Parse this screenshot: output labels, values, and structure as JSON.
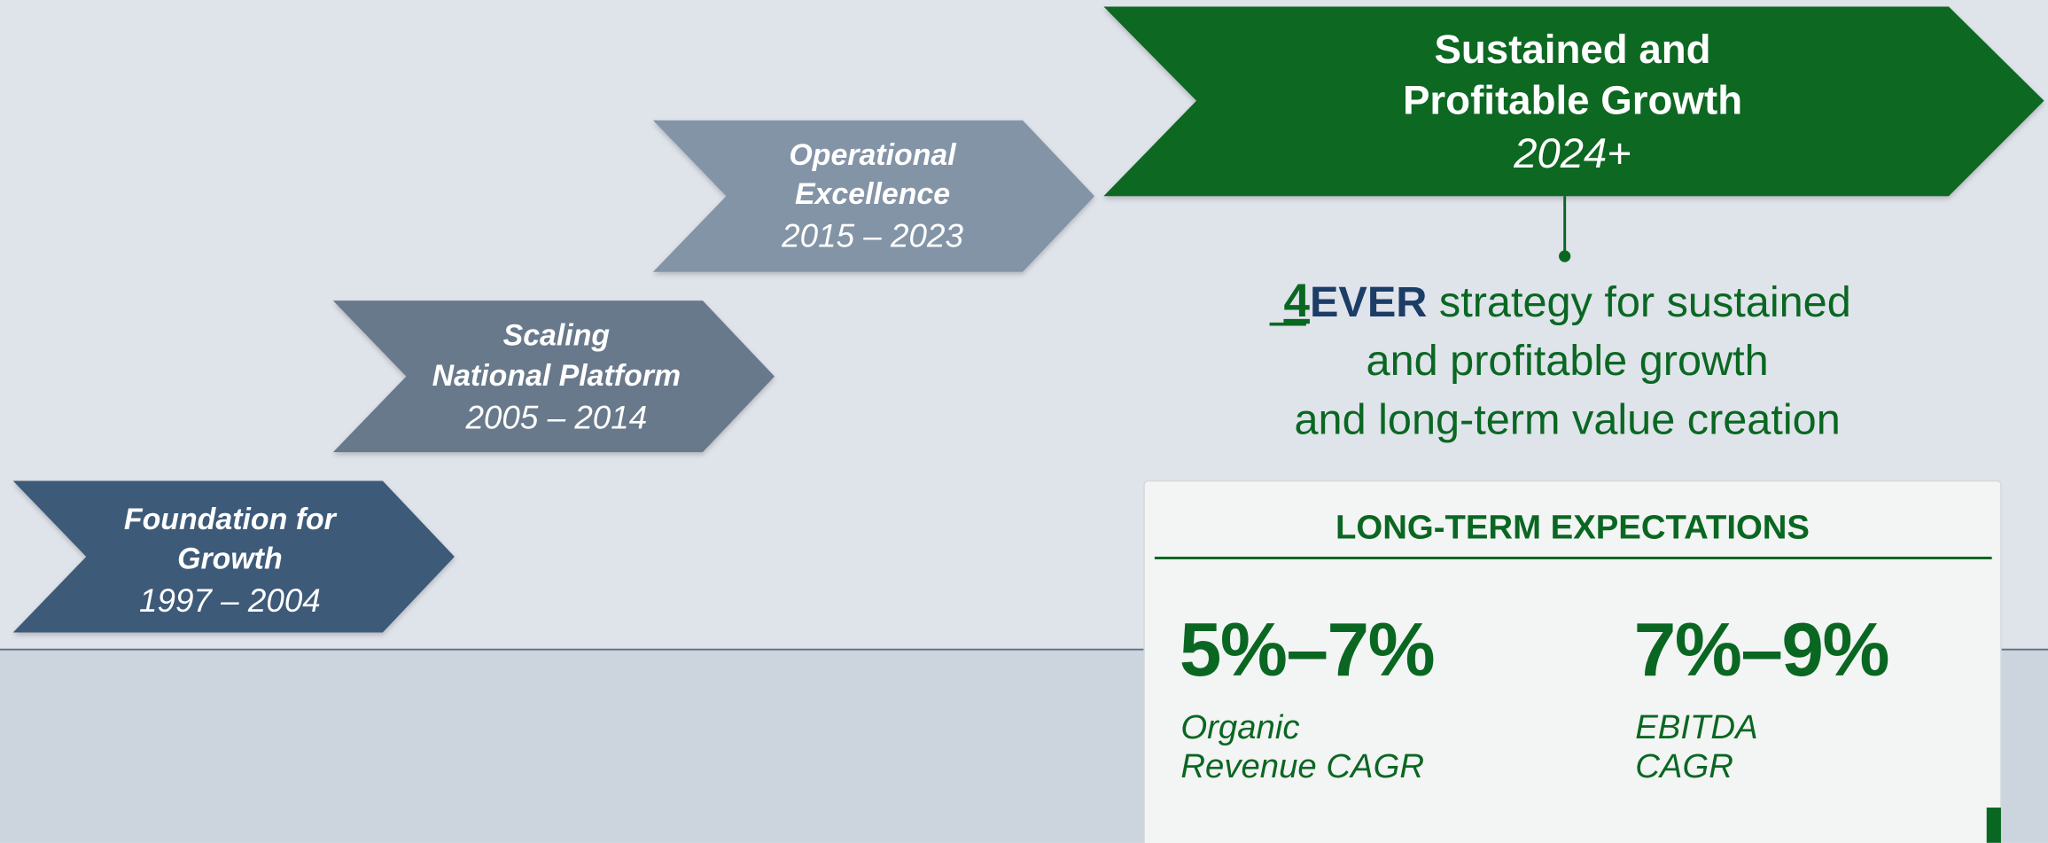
{
  "stages": [
    {
      "title": [
        "Foundation for",
        "Growth"
      ],
      "years": "1997 – 2004"
    },
    {
      "title": [
        "Scaling",
        "National Platform"
      ],
      "years": "2005 – 2014"
    },
    {
      "title": [
        "Operational",
        "Excellence"
      ],
      "years": "2015 – 2023"
    },
    {
      "title": [
        "Sustained and",
        "Profitable Growth"
      ],
      "years": "2024+"
    }
  ],
  "strategy": {
    "prefix_number": "4",
    "prefix_word": "EVER",
    "lines": [
      " strategy for sustained",
      "and profitable growth",
      "and long-term value creation"
    ]
  },
  "expectations": {
    "title": "LONG-TERM EXPECTATIONS",
    "items": [
      {
        "value": "5%–7%",
        "label": [
          "Organic",
          "Revenue CAGR"
        ]
      },
      {
        "value": "7%–9%",
        "label": [
          "EBITDA",
          "CAGR"
        ]
      }
    ]
  }
}
